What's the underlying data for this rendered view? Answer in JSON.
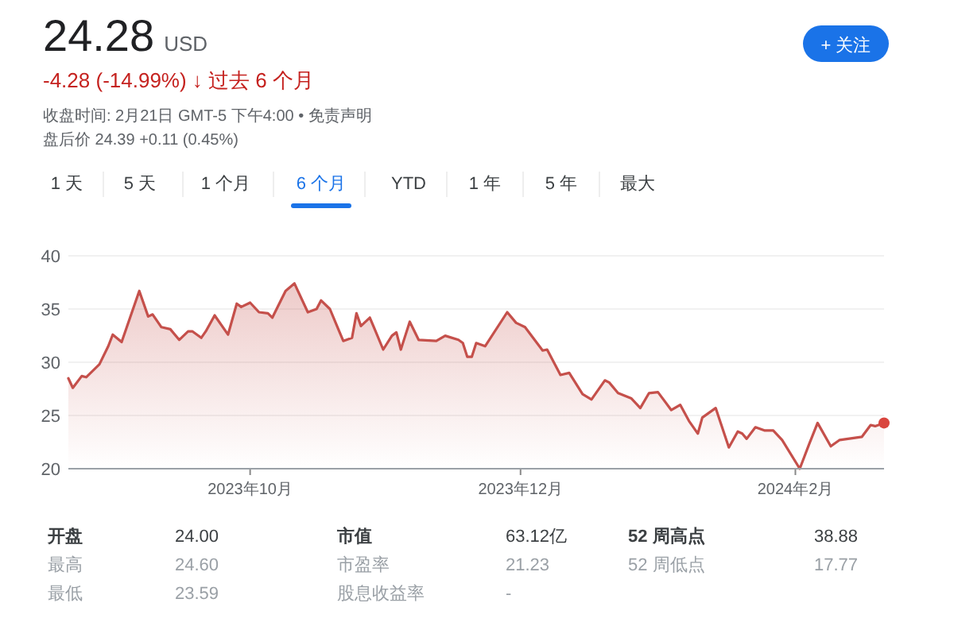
{
  "chart_data": {
    "type": "area",
    "title": "24.28 USD",
    "subtitle": "-4.28 (-14.99%) ↓ 过去 6 个月",
    "annotations": [
      "收盘时间: 2月21日 GMT-5 下午4:00 • 免责声明",
      "盘后价 24.39 +0.11 (0.45%)",
      "+ 关注",
      "1 天",
      "5 天",
      "1 个月",
      "6 个月",
      "YTD",
      "1 年",
      "5 年",
      "最大",
      "开盘",
      "24.00",
      "市值",
      "63.12亿",
      "52 周高点",
      "38.88",
      "最高",
      "24.60",
      "市盈率",
      "21.23",
      "52 周低点",
      "17.77",
      "最低",
      "23.59",
      "股息收益率",
      "-"
    ],
    "xlim": [
      "2023-08-21",
      "2024-02-21"
    ],
    "xticks": [
      {
        "value": "2023-10-01",
        "label": "2023年10月"
      },
      {
        "value": "2023-12-01",
        "label": "2023年12月"
      },
      {
        "value": "2024-02-01",
        "label": "2024年2月"
      }
    ],
    "ylim": [
      20,
      40
    ],
    "yticks": [
      20,
      25,
      30,
      35,
      40
    ],
    "grid": "y",
    "series": [
      {
        "color": "#c5504b",
        "x": [
          "2023-08-21",
          "2023-08-22",
          "2023-08-24",
          "2023-08-25",
          "2023-08-28",
          "2023-08-30",
          "2023-08-31",
          "2023-09-02",
          "2023-09-06",
          "2023-09-08",
          "2023-09-09",
          "2023-09-11",
          "2023-09-13",
          "2023-09-15",
          "2023-09-17",
          "2023-09-18",
          "2023-09-20",
          "2023-09-21",
          "2023-09-23",
          "2023-09-26",
          "2023-09-28",
          "2023-09-29",
          "2023-10-01",
          "2023-10-03",
          "2023-10-05",
          "2023-10-06",
          "2023-10-09",
          "2023-10-11",
          "2023-10-14",
          "2023-10-16",
          "2023-10-17",
          "2023-10-19",
          "2023-10-21",
          "2023-10-22",
          "2023-10-24",
          "2023-10-25",
          "2023-10-26",
          "2023-10-28",
          "2023-10-29",
          "2023-10-31",
          "2023-11-02",
          "2023-11-03",
          "2023-11-04",
          "2023-11-06",
          "2023-11-08",
          "2023-11-12",
          "2023-11-14",
          "2023-11-17",
          "2023-11-18",
          "2023-11-19",
          "2023-11-20",
          "2023-11-21",
          "2023-11-23",
          "2023-11-28",
          "2023-11-30",
          "2023-12-02",
          "2023-12-06",
          "2023-12-07",
          "2023-12-10",
          "2023-12-12",
          "2023-12-15",
          "2023-12-17",
          "2023-12-20",
          "2023-12-21",
          "2023-12-23",
          "2023-12-26",
          "2023-12-28",
          "2023-12-30",
          "2024-01-01",
          "2024-01-04",
          "2024-01-06",
          "2024-01-08",
          "2024-01-10",
          "2024-01-11",
          "2024-01-14",
          "2024-01-17",
          "2024-01-19",
          "2024-01-20",
          "2024-01-21",
          "2024-01-23",
          "2024-01-25",
          "2024-01-27",
          "2024-01-29",
          "2024-02-02",
          "2024-02-04",
          "2024-02-06",
          "2024-02-09",
          "2024-02-11",
          "2024-02-16",
          "2024-02-18",
          "2024-02-19",
          "2024-02-21"
        ],
        "values": [
          28.5,
          27.6,
          28.7,
          28.6,
          29.8,
          31.5,
          32.6,
          31.9,
          36.7,
          34.3,
          34.5,
          33.3,
          33.1,
          32.1,
          32.9,
          32.9,
          32.3,
          32.9,
          34.4,
          32.6,
          35.5,
          35.2,
          35.6,
          34.7,
          34.6,
          34.2,
          36.7,
          37.4,
          34.7,
          35.0,
          35.8,
          35.0,
          33.0,
          32.0,
          32.3,
          34.6,
          33.4,
          34.2,
          33.2,
          31.2,
          32.5,
          32.8,
          31.2,
          33.8,
          32.1,
          32.0,
          32.5,
          32.1,
          31.8,
          30.5,
          30.5,
          31.8,
          31.5,
          34.7,
          33.7,
          33.3,
          31.1,
          31.2,
          28.8,
          29.0,
          27.0,
          26.5,
          28.3,
          28.1,
          27.1,
          26.6,
          25.7,
          27.1,
          27.2,
          25.5,
          26.0,
          24.5,
          23.3,
          24.8,
          25.7,
          22.0,
          23.5,
          23.3,
          22.8,
          23.9,
          23.6,
          23.6,
          22.7,
          20.0,
          22.2,
          24.3,
          22.1,
          22.7,
          23.0,
          24.1,
          24.0,
          24.3
        ]
      },
      {
        "type": "scatter",
        "color": "#d9453e",
        "x": [
          "2024-02-21"
        ],
        "values": [
          24.3
        ]
      }
    ]
  }
}
